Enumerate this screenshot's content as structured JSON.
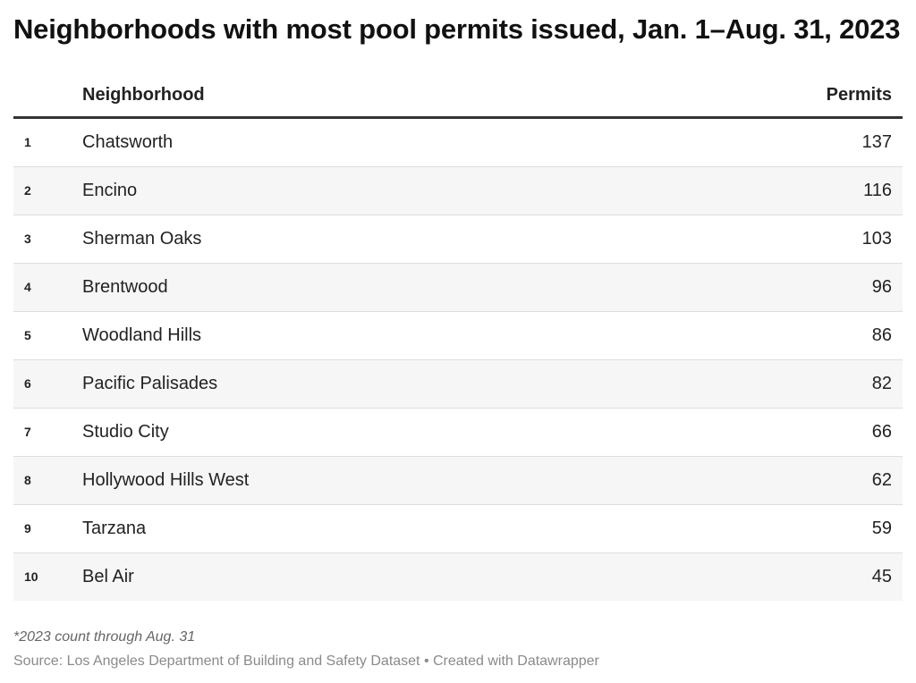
{
  "title": "Neighborhoods with most pool permits issued, Jan. 1–Aug. 31, 2023",
  "table": {
    "headers": {
      "rank": "",
      "neighborhood": "Neighborhood",
      "permits": "Permits"
    },
    "rows": [
      {
        "rank": "1",
        "neighborhood": "Chatsworth",
        "permits": "137"
      },
      {
        "rank": "2",
        "neighborhood": "Encino",
        "permits": "116"
      },
      {
        "rank": "3",
        "neighborhood": "Sherman Oaks",
        "permits": "103"
      },
      {
        "rank": "4",
        "neighborhood": "Brentwood",
        "permits": "96"
      },
      {
        "rank": "5",
        "neighborhood": "Woodland Hills",
        "permits": "86"
      },
      {
        "rank": "6",
        "neighborhood": "Pacific Palisades",
        "permits": "82"
      },
      {
        "rank": "7",
        "neighborhood": "Studio City",
        "permits": "66"
      },
      {
        "rank": "8",
        "neighborhood": "Hollywood Hills West",
        "permits": "62"
      },
      {
        "rank": "9",
        "neighborhood": "Tarzana",
        "permits": "59"
      },
      {
        "rank": "10",
        "neighborhood": "Bel Air",
        "permits": "45"
      }
    ]
  },
  "footer": {
    "note": "*2023 count through Aug. 31",
    "source": "Source: Los Angeles Department of Building and Safety Dataset • Created with Datawrapper"
  },
  "chart_data": {
    "type": "table",
    "title": "Neighborhoods with most pool permits issued, Jan. 1–Aug. 31, 2023",
    "columns": [
      "",
      "Neighborhood",
      "Permits"
    ],
    "categories": [
      "Chatsworth",
      "Encino",
      "Sherman Oaks",
      "Brentwood",
      "Woodland Hills",
      "Pacific Palisades",
      "Studio City",
      "Hollywood Hills West",
      "Tarzana",
      "Bel Air"
    ],
    "values": [
      137,
      116,
      103,
      96,
      86,
      82,
      66,
      62,
      59,
      45
    ],
    "ranks": [
      1,
      2,
      3,
      4,
      5,
      6,
      7,
      8,
      9,
      10
    ],
    "colors": {
      "header_rule": "#333333",
      "stripe": "#f6f6f6",
      "row_rule": "#dedede"
    }
  }
}
